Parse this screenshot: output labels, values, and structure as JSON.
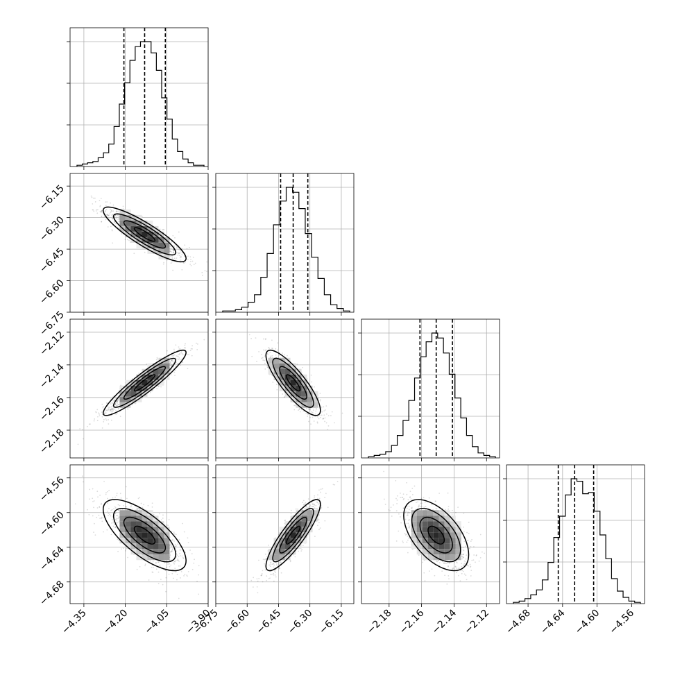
{
  "chart_data": {
    "type": "corner",
    "grid": true,
    "n_params": 4,
    "parameters": [
      {
        "ticks": [
          "-4.35",
          "-4.20",
          "-4.05",
          "-3.90"
        ],
        "range": [
          -4.4,
          -3.9
        ],
        "median": -4.13,
        "q16": -4.205,
        "q84": -4.055
      },
      {
        "ticks": [
          "-6.75",
          "-6.60",
          "-6.45",
          "-6.30",
          "-6.15"
        ],
        "range": [
          -6.75,
          -6.09
        ],
        "median": -6.38,
        "q16": -6.44,
        "q84": -6.31
      },
      {
        "ticks": [
          "-2.18",
          "-2.16",
          "-2.14",
          "-2.12"
        ],
        "range": [
          -2.197,
          -2.112
        ],
        "median": -2.151,
        "q16": -2.161,
        "q84": -2.141
      },
      {
        "ticks": [
          "-4.68",
          "-4.64",
          "-4.60",
          "-4.56"
        ],
        "range": [
          -4.705,
          -4.545
        ],
        "median": -4.626,
        "q16": -4.645,
        "q84": -4.604
      }
    ],
    "histograms": [
      [
        1,
        2,
        3,
        4,
        7,
        11,
        18,
        32,
        50,
        67,
        85,
        96,
        100,
        100,
        91,
        77,
        55,
        38,
        22,
        12,
        6,
        3,
        1,
        1
      ],
      [
        1,
        1,
        2,
        4,
        8,
        14,
        28,
        47,
        70,
        89,
        100,
        96,
        83,
        63,
        44,
        27,
        14,
        6,
        3,
        1
      ],
      [
        1,
        2,
        3,
        5,
        10,
        18,
        30,
        46,
        64,
        81,
        93,
        100,
        96,
        84,
        67,
        48,
        32,
        18,
        9,
        4,
        2,
        1
      ],
      [
        1,
        2,
        4,
        7,
        11,
        19,
        33,
        53,
        70,
        87,
        100,
        98,
        88,
        89,
        74,
        55,
        36,
        20,
        10,
        5,
        2,
        1
      ]
    ],
    "correlations": [
      [
        1.0,
        -0.88,
        0.93,
        -0.72
      ],
      [
        -0.88,
        1.0,
        -0.84,
        0.87
      ],
      [
        0.93,
        -0.84,
        1.0,
        -0.55
      ],
      [
        -0.72,
        0.87,
        -0.55,
        1.0
      ]
    ]
  }
}
